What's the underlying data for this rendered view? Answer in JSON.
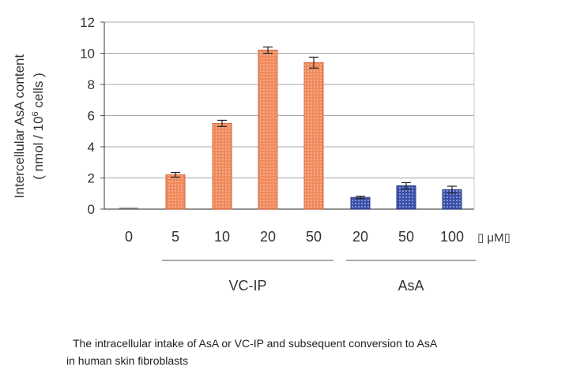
{
  "chart_data": {
    "type": "bar",
    "ylabel_line1": "Intercellular AsA content",
    "ylabel_line2_prefix": "( nmol / 10",
    "ylabel_line2_sup": "6",
    "ylabel_line2_suffix": " cells )",
    "ylim": [
      0,
      12
    ],
    "yticks": [
      "0",
      "2",
      "4",
      "6",
      "8",
      "10",
      "12"
    ],
    "grid": true,
    "categories": [
      "0",
      "5",
      "10",
      "20",
      "50",
      "20",
      "50",
      "100"
    ],
    "unit_label": "▯ μM▯",
    "groups": [
      {
        "name": "VC-IP",
        "color": "#f08a5d",
        "indices": [
          1,
          2,
          3,
          4
        ]
      },
      {
        "name": "AsA",
        "color": "#3a4fa8",
        "indices": [
          5,
          6,
          7
        ]
      }
    ],
    "values": [
      0.0,
      2.2,
      5.5,
      10.2,
      9.4,
      0.75,
      1.5,
      1.25
    ],
    "errors": [
      0.0,
      0.15,
      0.2,
      0.2,
      0.35,
      0.08,
      0.2,
      0.22
    ]
  },
  "caption": {
    "line1": "The intracellular intake of AsA or VC-IP and subsequent conversion to AsA",
    "line2": "in human skin fibroblasts"
  }
}
